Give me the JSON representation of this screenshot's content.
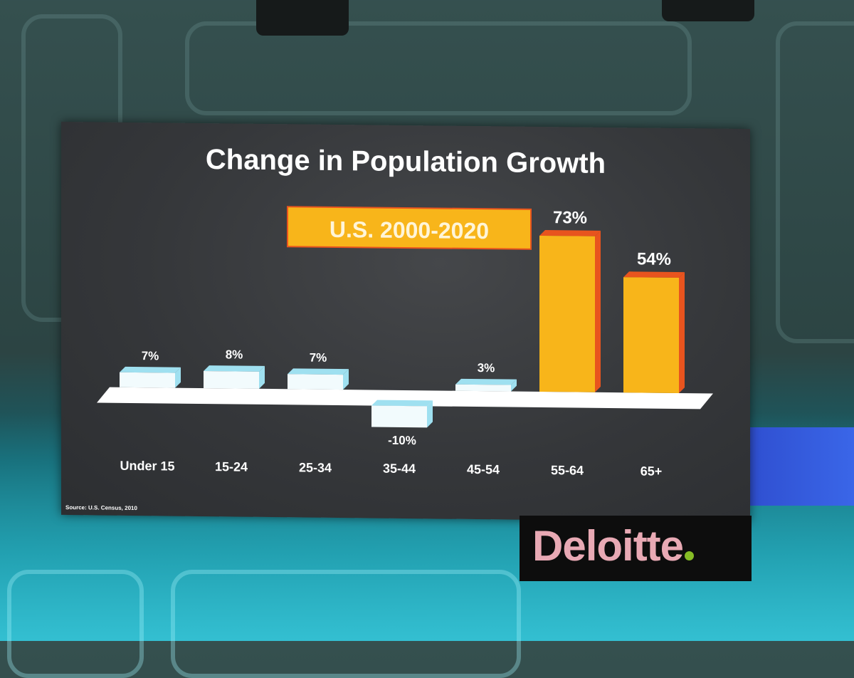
{
  "chart_data": {
    "type": "bar",
    "title": "Change in Population Growth",
    "subtitle": "U.S. 2000-2020",
    "categories": [
      "Under 15",
      "15-24",
      "25-34",
      "35-44",
      "45-54",
      "55-64",
      "65+"
    ],
    "values": [
      7,
      8,
      7,
      -10,
      3,
      73,
      54
    ],
    "value_labels": [
      "7%",
      "8%",
      "7%",
      "-10%",
      "3%",
      "73%",
      "54%"
    ],
    "unit": "%",
    "highlight_categories": [
      "55-64",
      "65+"
    ],
    "xlabel": "",
    "ylabel": "",
    "ylim": [
      -10,
      73
    ],
    "grid": false,
    "source": "Source:  U.S. Census, 2010"
  },
  "branding": {
    "logo_text": "Deloitte"
  },
  "colors": {
    "highlight_bar": "#f8b51a",
    "highlight_edge": "#e8541e",
    "normal_bar": "#f2fbfd",
    "normal_edge": "#9fe0f0",
    "subtitle_bg": "#f8b51a",
    "baseline": "#ffffff",
    "text": "#ffffff"
  }
}
